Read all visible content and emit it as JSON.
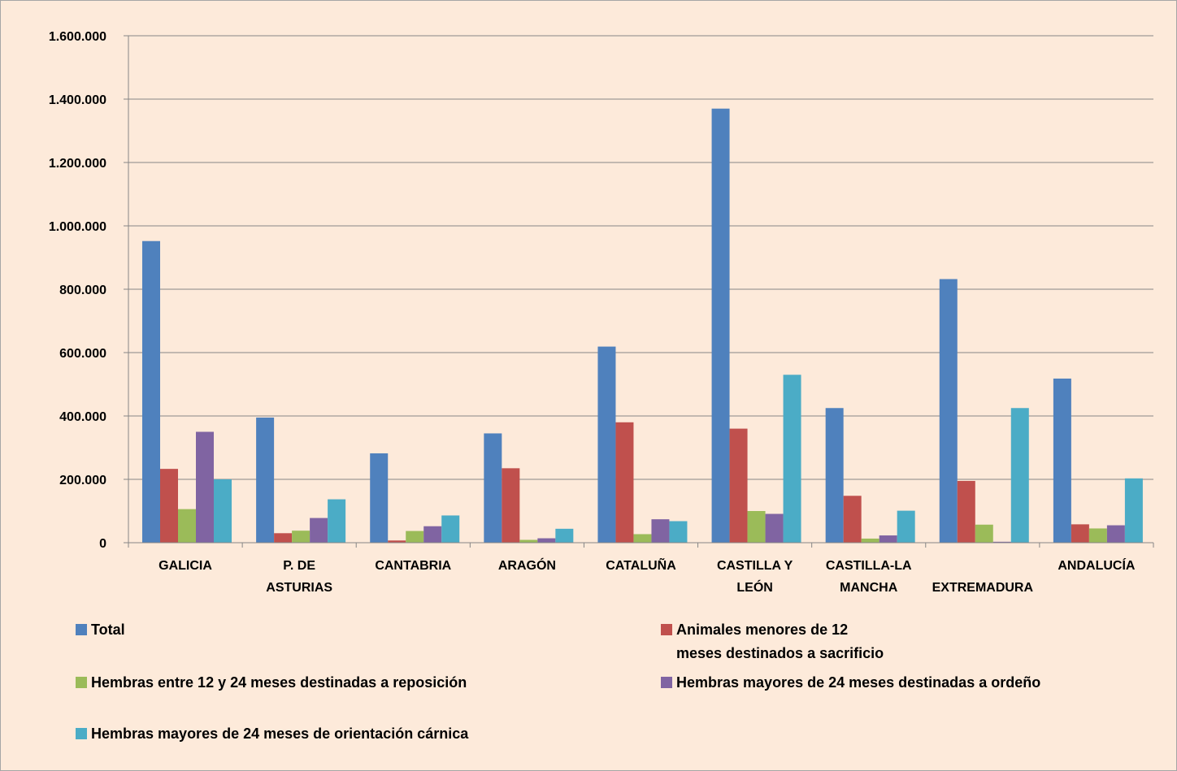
{
  "chart_data": {
    "type": "bar",
    "title": "",
    "xlabel": "",
    "ylabel": "",
    "ylim": [
      0,
      1600000
    ],
    "yticks": [
      0,
      200000,
      400000,
      600000,
      800000,
      1000000,
      1200000,
      1400000,
      1600000
    ],
    "ytick_labels": [
      "0",
      "200.000",
      "400.000",
      "600.000",
      "800.000",
      "1.000.000",
      "1.200.000",
      "1.400.000",
      "1.600.000"
    ],
    "grid": true,
    "legend_position": "bottom",
    "categories": [
      "GALICIA",
      "P. DE\nASTURIAS",
      "CANTABRIA",
      "ARAGÓN",
      "CATALUÑA",
      "CASTILLA Y\nLEÓN",
      "CASTILLA-LA\nMANCHA",
      "EXTREMADURA",
      "ANDALUCÍA"
    ],
    "series": [
      {
        "name": "Total",
        "color": "#4f81bd",
        "values": [
          952000,
          395000,
          282000,
          345000,
          619000,
          1370000,
          425000,
          832000,
          518000
        ]
      },
      {
        "name": "Animales menores de 12\nmeses destinados a sacrificio",
        "color": "#c0504d",
        "values": [
          233000,
          30000,
          7000,
          235000,
          380000,
          360000,
          148000,
          195000,
          58000
        ]
      },
      {
        "name": "Hembras entre 12 y 24 meses destinadas a reposición",
        "color": "#9bbb59",
        "values": [
          106000,
          38000,
          37000,
          9000,
          27000,
          100000,
          13000,
          57000,
          45000
        ]
      },
      {
        "name": "Hembras mayores de 24 meses destinadas a ordeño",
        "color": "#8064a2",
        "values": [
          350000,
          78000,
          52000,
          14000,
          74000,
          91000,
          23000,
          3000,
          55000
        ]
      },
      {
        "name": "Hembras mayores de 24 meses de orientación cárnica",
        "color": "#4bacc6",
        "values": [
          200000,
          137000,
          86000,
          44000,
          68000,
          530000,
          101000,
          425000,
          203000
        ]
      }
    ]
  }
}
